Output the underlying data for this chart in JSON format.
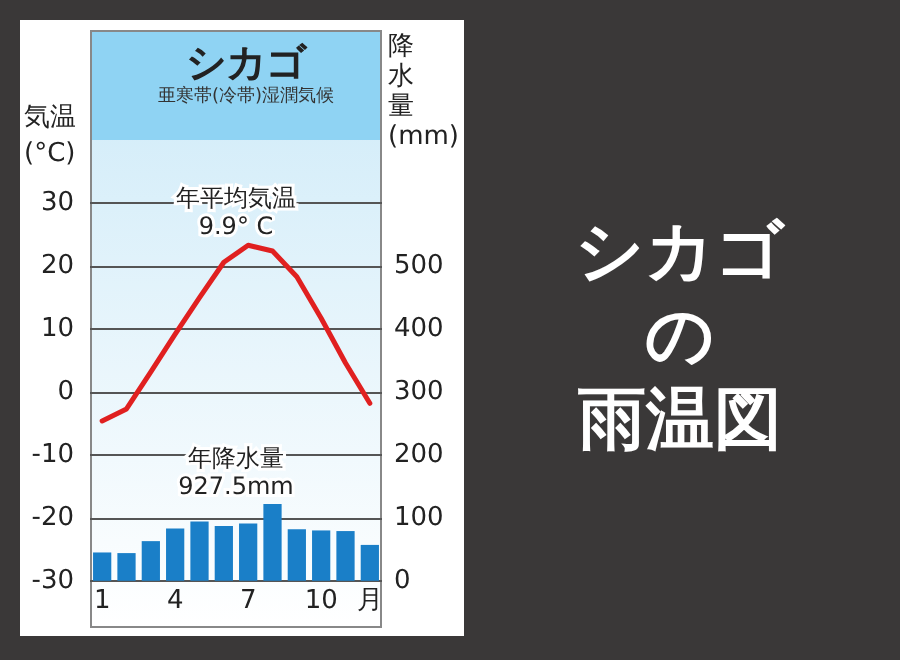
{
  "chart_data": {
    "type": "line",
    "title": "シカゴ",
    "subtitle": "亜寒帯(冷帯)湿潤気候",
    "ylabel": "気温(°C)",
    "y2label": "降水量(mm)",
    "annotations": [
      "年平均気温\n9.9° C",
      "年降水量\n927.5mm",
      "シカゴ",
      "の",
      "雨温図"
    ],
    "categories": [
      "1",
      null,
      null,
      "4",
      null,
      null,
      "7",
      null,
      null,
      "10",
      null,
      "月"
    ],
    "series": [
      {
        "color": "#e02020",
        "values": [
          -4.6,
          -2.7,
          3.2,
          9.2,
          15.0,
          20.6,
          23.3,
          22.4,
          18.3,
          11.7,
          4.6,
          -1.8
        ]
      },
      {
        "type": "bar",
        "axis": "y2",
        "color": "#1a7fc8",
        "values": [
          45,
          44,
          63,
          83,
          94,
          87,
          91,
          122,
          82,
          80,
          79,
          57
        ]
      }
    ],
    "ylim": [
      -37.5,
      57.5
    ],
    "yticks": [
      -30,
      -20,
      -10,
      0,
      10,
      20,
      30
    ],
    "y2lim": [
      -75,
      875
    ],
    "y2ticks": [
      0,
      100,
      200,
      300,
      400,
      500
    ],
    "grid": "y",
    "marker": "none"
  }
}
